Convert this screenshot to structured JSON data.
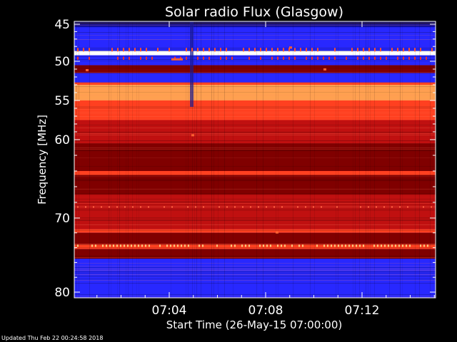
{
  "footer": "Updated Thu Feb 22 00:24:58 2018",
  "chart_data": {
    "type": "heatmap",
    "title": "Solar radio Flux (Glasgow)",
    "xlabel": "Start Time (26-May-15 07:00:00)",
    "ylabel": "Frequency [MHz]",
    "x_ticks": [
      "07:04",
      "07:08",
      "07:12"
    ],
    "y_ticks": [
      45,
      50,
      55,
      60,
      70,
      80
    ],
    "colormap": [
      "#000000",
      "#1010a0",
      "#2828ff",
      "#800000",
      "#c01010",
      "#ff4020",
      "#ffa050",
      "#ffffff"
    ],
    "bands": [
      {
        "from": 45.0,
        "to": 45.4,
        "level": 1
      },
      {
        "from": 45.4,
        "to": 48.6,
        "level": 2
      },
      {
        "from": 48.6,
        "to": 49.2,
        "level": 7
      },
      {
        "from": 49.2,
        "to": 50.5,
        "level": 2
      },
      {
        "from": 50.5,
        "to": 51.5,
        "level": 3
      },
      {
        "from": 51.5,
        "to": 52.7,
        "level": 2
      },
      {
        "from": 52.7,
        "to": 53.0,
        "level": 5
      },
      {
        "from": 53.0,
        "to": 55.0,
        "level": 6
      },
      {
        "from": 55.0,
        "to": 57.5,
        "level": 5
      },
      {
        "from": 57.5,
        "to": 60.5,
        "level": 4
      },
      {
        "from": 60.5,
        "to": 64.0,
        "level": 3
      },
      {
        "from": 64.0,
        "to": 64.5,
        "level": 5
      },
      {
        "from": 64.5,
        "to": 67.0,
        "level": 3
      },
      {
        "from": 67.0,
        "to": 71.5,
        "level": 4
      },
      {
        "from": 71.5,
        "to": 72.0,
        "level": 5
      },
      {
        "from": 72.0,
        "to": 73.5,
        "level": 3
      },
      {
        "from": 73.5,
        "to": 74.2,
        "level": 5
      },
      {
        "from": 74.2,
        "to": 75.5,
        "level": 3
      },
      {
        "from": 75.5,
        "to": 80.0,
        "level": 2
      }
    ]
  }
}
